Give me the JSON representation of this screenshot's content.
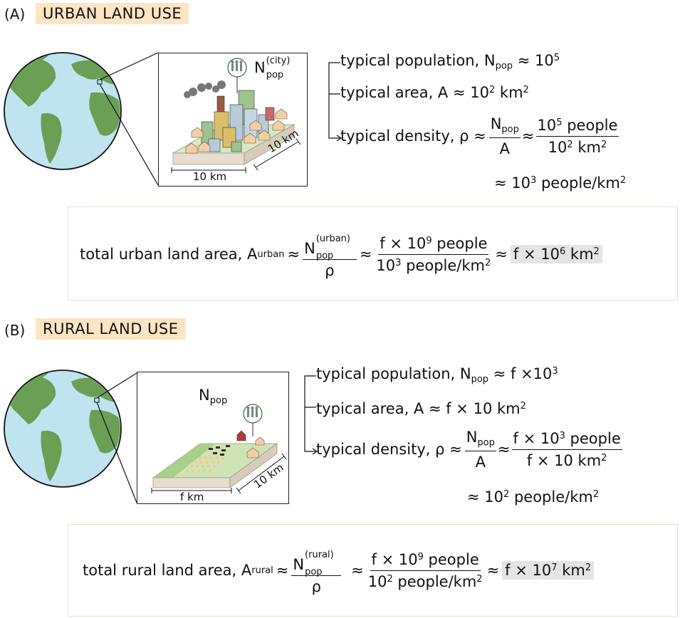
{
  "panel_a": {
    "label": "(A)",
    "title": "URBAN LAND USE",
    "inset": {
      "npop_main": "N",
      "npop_sup": "(city)",
      "npop_sub": "pop",
      "width_label": "10 km",
      "depth_label": "10 km"
    },
    "pop_line": {
      "text": "typical population, N",
      "sub": "pop",
      "approx": "≈ 10",
      "exp": "5"
    },
    "area_line": {
      "text": "typical area, A ≈ 10",
      "exp": "2",
      "unit": " km",
      "unit_exp": "2"
    },
    "density_line": {
      "text": "typical density, ρ ≈",
      "frac1_num": "N",
      "frac1_num_sub": "pop",
      "frac1_den": "A",
      "approx": "≈",
      "frac2_num": "10",
      "frac2_num_exp": "5",
      "frac2_num_rest": " people",
      "frac2_den": "10",
      "frac2_den_exp": "2",
      "frac2_den_rest": " km",
      "frac2_den_unit_exp": "2"
    },
    "density_result": {
      "text": "≈ 10",
      "exp": "3",
      "rest": " people/km",
      "rest_exp": "2"
    },
    "total": {
      "text": "total urban land area, A",
      "sub": "urban",
      "frac1_num": "N",
      "frac1_num_sup": "(urban)",
      "frac1_num_sub": "pop",
      "frac1_den": "ρ",
      "frac2_num": "f × 10",
      "frac2_num_exp": "9",
      "frac2_num_rest": " people",
      "frac2_den": "10",
      "frac2_den_exp": "3",
      "frac2_den_rest": " people/km",
      "frac2_den_rest_exp": "2",
      "result": "f × 10",
      "result_exp": "6",
      "result_unit": " km",
      "result_unit_exp": "2"
    }
  },
  "panel_b": {
    "label": "(B)",
    "title": "RURAL LAND USE",
    "inset": {
      "npop_main": "N",
      "npop_sub": "pop",
      "width_label": "f km",
      "depth_label": "10 km"
    },
    "pop_line": {
      "text": "typical population, N",
      "sub": "pop",
      "approx": "≈ f ×10",
      "exp": "3"
    },
    "area_line": {
      "text": "typical area, A ≈ f × 10 km",
      "exp": "2"
    },
    "density_line": {
      "text": "typical density, ρ ≈",
      "frac1_num": "N",
      "frac1_num_sub": "pop",
      "frac1_den": "A",
      "approx": "≈",
      "frac2_num": "f × 10",
      "frac2_num_exp": "3",
      "frac2_num_rest": " people",
      "frac2_den": "f × 10 km",
      "frac2_den_exp": "2"
    },
    "density_result": {
      "text": "≈ 10",
      "exp": "2",
      "rest": " people/km",
      "rest_exp": "2"
    },
    "total": {
      "text": "total rural land area, A",
      "sub": "rural",
      "frac1_num": "N",
      "frac1_num_sup": "(rural)",
      "frac1_num_sub": "pop",
      "frac1_den": "ρ",
      "frac2_num": "f × 10",
      "frac2_num_exp": "9",
      "frac2_num_rest": " people",
      "frac2_den": "10",
      "frac2_den_exp": "2",
      "frac2_den_rest": " people/km",
      "frac2_den_rest_exp": "2",
      "result": "f × 10",
      "result_exp": "7",
      "result_unit": " km",
      "result_unit_exp": "2"
    }
  },
  "colors": {
    "ocean": "#bfe3ef",
    "land": "#6a9f55",
    "title_bg": "#fde5c4",
    "highlight_bg": "#e4e4e4",
    "box_border": "#e6ddcf"
  }
}
